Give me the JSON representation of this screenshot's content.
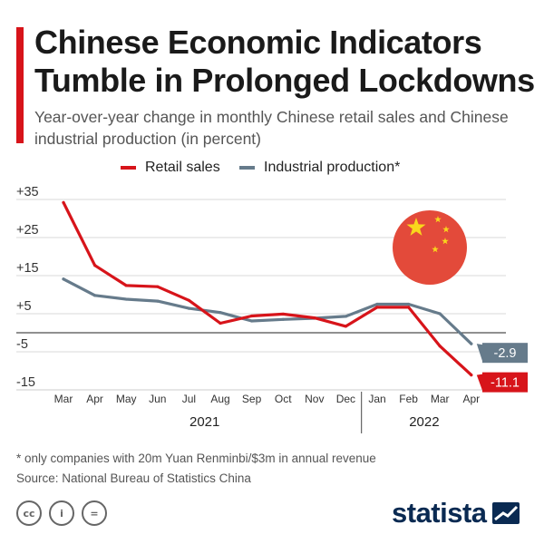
{
  "header": {
    "title": "Chinese Economic Indicators Tumble in Prolonged Lockdowns",
    "subtitle": "Year-over-year change in monthly Chinese retail sales and Chinese industrial production (in percent)"
  },
  "legend": {
    "retail_label": "Retail sales",
    "industrial_label": "Industrial production*"
  },
  "colors": {
    "retail": "#d7141a",
    "industrial": "#667b8b",
    "accent": "#d7141a",
    "brand": "#0a2a52",
    "flag_red": "#e34a3a",
    "flag_star": "#f9d71c"
  },
  "chart_data": {
    "type": "line",
    "categories": [
      "Mar",
      "Apr",
      "May",
      "Jun",
      "Jul",
      "Aug",
      "Sep",
      "Oct",
      "Nov",
      "Dec",
      "Jan",
      "Feb",
      "Mar",
      "Apr"
    ],
    "year_groups": [
      {
        "label": "2021",
        "start": 0,
        "end": 9
      },
      {
        "label": "2022",
        "start": 10,
        "end": 13
      }
    ],
    "series": [
      {
        "name": "Retail sales",
        "values": [
          34.2,
          17.7,
          12.4,
          12.1,
          8.5,
          2.5,
          4.4,
          4.9,
          3.9,
          1.7,
          6.7,
          6.7,
          -3.5,
          -11.1
        ]
      },
      {
        "name": "Industrial production*",
        "values": [
          14.1,
          9.8,
          8.8,
          8.3,
          6.4,
          5.3,
          3.1,
          3.5,
          3.8,
          4.3,
          7.5,
          7.5,
          5.0,
          -2.9
        ]
      }
    ],
    "end_labels": [
      "-2.9",
      "-11.1"
    ],
    "y_ticks": [
      35,
      25,
      15,
      5,
      -5,
      -15
    ],
    "y_tick_labels": [
      "+35",
      "+25",
      "+15",
      "+5",
      "-5",
      "-15"
    ],
    "ylim": [
      -15,
      35
    ],
    "grid": true
  },
  "footer": {
    "footnote": "* only companies with 20m Yuan Renminbi/$3m in annual revenue",
    "source": "Source: National Bureau of Statistics China",
    "cc_icons": [
      "cc-icon",
      "by-icon",
      "nd-icon"
    ],
    "cc_glyphs": [
      "cc",
      "i",
      "="
    ],
    "brand": "statista"
  }
}
